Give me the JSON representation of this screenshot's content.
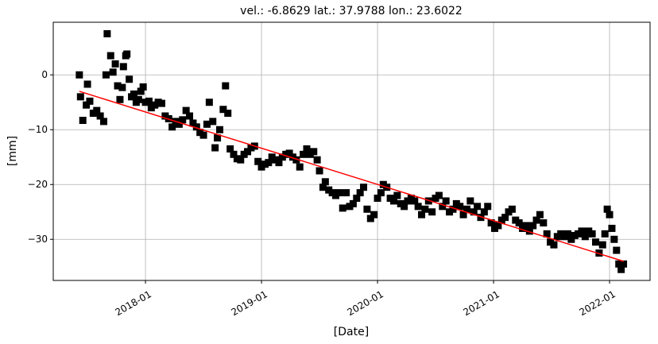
{
  "chart_data": {
    "type": "scatter",
    "title": "vel.: -6.8629 lat.: 37.9788 lon.: 23.6022",
    "xlabel": "[Date]",
    "ylabel": "[mm]",
    "xlim": [
      2017.205,
      2022.349
    ],
    "ylim": [
      -37.5,
      9.6
    ],
    "xticks": [
      {
        "value": 2018,
        "label": "2018-01"
      },
      {
        "value": 2019,
        "label": "2019-01"
      },
      {
        "value": 2020,
        "label": "2020-01"
      },
      {
        "value": 2021,
        "label": "2021-01"
      },
      {
        "value": 2022,
        "label": "2022-01"
      }
    ],
    "yticks": [
      0,
      {
        "value": -10,
        "label": "−10"
      },
      {
        "value": -20,
        "label": "−20"
      },
      {
        "value": -30,
        "label": "−30"
      }
    ],
    "grid": true,
    "series": [
      {
        "color": "#000000",
        "marker": "square",
        "x": [
          2017.43,
          2017.44,
          2017.46,
          2017.49,
          2017.5,
          2017.52,
          2017.55,
          2017.58,
          2017.61,
          2017.64,
          2017.66,
          2017.67,
          2017.7,
          2017.72,
          2017.74,
          2017.76,
          2017.78,
          2017.8,
          2017.81,
          2017.83,
          2017.84,
          2017.86,
          2017.88,
          2017.9,
          2017.92,
          2017.94,
          2017.96,
          2017.98,
          2018.0,
          2018.03,
          2018.05,
          2018.08,
          2018.11,
          2018.14,
          2018.17,
          2018.2,
          2018.23,
          2018.26,
          2018.29,
          2018.32,
          2018.35,
          2018.38,
          2018.41,
          2018.44,
          2018.47,
          2018.5,
          2018.53,
          2018.55,
          2018.58,
          2018.6,
          2018.62,
          2018.64,
          2018.67,
          2018.69,
          2018.71,
          2018.73,
          2018.76,
          2018.79,
          2018.82,
          2018.85,
          2018.88,
          2018.91,
          2018.94,
          2018.97,
          2019.0,
          2019.03,
          2019.06,
          2019.09,
          2019.12,
          2019.15,
          2019.18,
          2019.21,
          2019.24,
          2019.27,
          2019.3,
          2019.33,
          2019.36,
          2019.39,
          2019.42,
          2019.45,
          2019.48,
          2019.5,
          2019.53,
          2019.55,
          2019.58,
          2019.61,
          2019.64,
          2019.67,
          2019.7,
          2019.73,
          2019.76,
          2019.79,
          2019.82,
          2019.85,
          2019.88,
          2019.91,
          2019.94,
          2019.97,
          2020.0,
          2020.03,
          2020.05,
          2020.08,
          2020.11,
          2020.14,
          2020.17,
          2020.2,
          2020.23,
          2020.26,
          2020.29,
          2020.32,
          2020.35,
          2020.38,
          2020.41,
          2020.44,
          2020.47,
          2020.5,
          2020.53,
          2020.56,
          2020.59,
          2020.62,
          2020.65,
          2020.68,
          2020.71,
          2020.74,
          2020.77,
          2020.8,
          2020.83,
          2020.86,
          2020.89,
          2020.92,
          2020.95,
          2020.98,
          2021.01,
          2021.04,
          2021.07,
          2021.1,
          2021.13,
          2021.16,
          2021.19,
          2021.22,
          2021.25,
          2021.28,
          2021.31,
          2021.34,
          2021.37,
          2021.4,
          2021.43,
          2021.46,
          2021.49,
          2021.52,
          2021.55,
          2021.58,
          2021.61,
          2021.64,
          2021.67,
          2021.7,
          2021.73,
          2021.76,
          2021.79,
          2021.82,
          2021.85,
          2021.88,
          2021.91,
          2021.94,
          2021.96,
          2021.98,
          2022.0,
          2022.02,
          2022.04,
          2022.06,
          2022.08,
          2022.1,
          2022.12
        ],
        "values": [
          0,
          -4,
          -8.3,
          -5.5,
          -1.7,
          -4.8,
          -7,
          -6.5,
          -7.5,
          -8.5,
          0,
          7.5,
          3.5,
          0.5,
          2,
          -2,
          -4.5,
          -2.3,
          1.5,
          3.5,
          3.8,
          -0.8,
          -4,
          -3.5,
          -5,
          -4.5,
          -3,
          -2.2,
          -5,
          -4.8,
          -6,
          -5.5,
          -5,
          -5.2,
          -7.5,
          -8,
          -9.5,
          -8.5,
          -9,
          -8.2,
          -6.5,
          -7.5,
          -8.8,
          -9.5,
          -10.5,
          -11,
          -9,
          -5,
          -8.5,
          -13.3,
          -11.5,
          -10,
          -6.3,
          -2,
          -7,
          -13.5,
          -14.5,
          -15.3,
          -15.5,
          -14.5,
          -14,
          -13.3,
          -13,
          -15.8,
          -16.8,
          -16.3,
          -16,
          -15,
          -15.5,
          -16,
          -15,
          -14.5,
          -14.3,
          -15,
          -15.5,
          -16.8,
          -14.5,
          -13.5,
          -14.5,
          -14,
          -15.5,
          -17.5,
          -20.5,
          -19.5,
          -21,
          -21.5,
          -22,
          -21.5,
          -24.3,
          -21.5,
          -24,
          -23.5,
          -22.5,
          -21.5,
          -20.5,
          -24.5,
          -26.2,
          -25.5,
          -22.5,
          -21.5,
          -20,
          -20.5,
          -22.5,
          -23,
          -22,
          -23.5,
          -24,
          -23,
          -22.5,
          -23,
          -24,
          -25.5,
          -24.5,
          -23,
          -25,
          -22.5,
          -22,
          -24,
          -23,
          -25,
          -24.5,
          -23.5,
          -24,
          -25.5,
          -24.5,
          -23,
          -25,
          -24,
          -26,
          -25,
          -24,
          -27,
          -28,
          -27.5,
          -26.5,
          -26,
          -25,
          -24.5,
          -26.5,
          -27,
          -28,
          -27.5,
          -28.5,
          -27.5,
          -26.5,
          -25.5,
          -27,
          -29,
          -30.5,
          -31,
          -29.5,
          -29,
          -29.5,
          -29,
          -30,
          -29.3,
          -29,
          -28.5,
          -29.5,
          -28.5,
          -29,
          -30.5,
          -32.5,
          -31,
          -29,
          -24.5,
          -25.5,
          -28,
          -30,
          -32,
          -34.5,
          -35.5,
          -34.5
        ]
      },
      {
        "color": "#ff0000",
        "marker": "line",
        "x": [
          2017.43,
          2022.12
        ],
        "values": [
          -3.0,
          -34.0
        ]
      }
    ]
  }
}
